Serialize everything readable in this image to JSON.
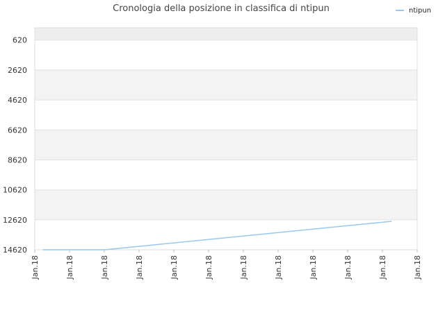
{
  "chart_data": {
    "type": "line",
    "title": "Cronologia della posizione in classifica di ntipun",
    "xlabel": "",
    "ylabel": "",
    "x_tick_labels": [
      "Jan.18",
      "Jan.18",
      "Jan.18",
      "Jan.18",
      "Jan.18",
      "Jan.18",
      "Jan.18",
      "Jan.18",
      "Jan.18",
      "Jan.18",
      "Jan.18",
      "Jan.18"
    ],
    "y_tick_labels": [
      "620",
      "2620",
      "4620",
      "6620",
      "8620",
      "10620",
      "12620",
      "14620"
    ],
    "y_ticks": [
      620,
      2620,
      4620,
      6620,
      8620,
      10620,
      12620,
      14620
    ],
    "ylim": [
      14620,
      -200
    ],
    "y_inverted": true,
    "grid": true,
    "legend_position": "top-right",
    "series": [
      {
        "name": "ntipun",
        "color": "#99c6ea",
        "x": [
          0.25,
          2.2,
          11.2
        ],
        "y": [
          14620,
          14620,
          12720
        ]
      }
    ],
    "xlim": [
      0,
      12
    ]
  }
}
